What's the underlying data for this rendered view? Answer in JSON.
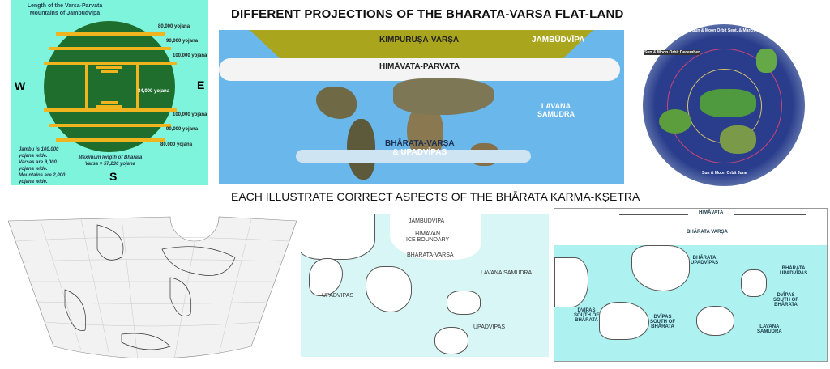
{
  "title": "DIFFERENT PROJECTIONS OF THE BHARATA-VARSA FLAT-LAND",
  "subtitle": "EACH ILLUSTRATE CORRECT ASPECTS OF THE BHĀRATA KARMA-KṢETRA",
  "colors": {
    "p1_bg": "#7ff4dd",
    "p1_circle": "#1f6e2d",
    "p1_bars": "#f0b41e",
    "p2_sea": "#6ab7ec",
    "p2_kimpurusa": "#a9a51d",
    "p5_sea": "#d8f6f6",
    "p6_sea": "#aef1f1"
  },
  "panel1": {
    "heading": [
      "Length of the Varsa-Parvata",
      "Mountains of Jambudvipa"
    ],
    "directions": {
      "west": "W",
      "east": "E",
      "south": "S"
    },
    "bar_labels": [
      "80,000 yojana",
      "90,000 yojana",
      "100,000 yojana",
      "34,000 yojana",
      "100,000 yojana",
      "90,000 yojana",
      "80,000 yojana"
    ],
    "note_left": [
      "Jambu is 100,000",
      "yojana wide.",
      "Varsas are 9,000",
      "yojana wide.",
      "Mountains are 2,000",
      "yojana wide."
    ],
    "note_center": [
      "Maximum length of Bharata",
      "Varsa = 57,236 yojana"
    ]
  },
  "panel2": {
    "labels": {
      "kimpurusa": "KIMPURUṢA-VARṢA",
      "jambudvipa": "JAMBŪDVĪPA",
      "himavata": "HIMĀVATA-PARVATA",
      "lavana": [
        "LAVANA",
        "SAMUDRA"
      ],
      "bharata": [
        "BHĀRATA-VARṢA",
        "& UPADVĪPAS"
      ]
    }
  },
  "panel3": {
    "labels": {
      "sept": "Sun & Moon Orbit Sept. & March",
      "dec": "Sun & Moon Orbit December",
      "june": "Sun & Moon Orbit June"
    }
  },
  "panel5": {
    "labels": {
      "jambudvipa": "JAMBUDVIPA",
      "himavan": [
        "HIMAVAN",
        "ICE BOUNDARY"
      ],
      "bharata": "BHARATA-VARSA",
      "lavana": "LAVANA SAMUDRA",
      "upadvipas_left": "UPADVIPAS",
      "upadvipas_right": "UPADVIPAS"
    }
  },
  "panel6": {
    "labels": {
      "himavata": "HIMĀVATA",
      "bharata_varsa": "BHĀRATA VARṢA",
      "upadvipas_mid": [
        "BHĀRATA",
        "UPADVĪPAS"
      ],
      "upadvipas_right": [
        "BHĀRATA",
        "UPADVĪPAS"
      ],
      "dvipas_left": [
        "DVĪPAS",
        "SOUTH OF",
        "BHĀRATA"
      ],
      "dvipas_mid": [
        "DVĪPAS",
        "SOUTH OF",
        "BHĀRATA"
      ],
      "dvipas_right": [
        "DVĪPAS",
        "SOUTH OF",
        "BHĀRATA"
      ],
      "lavana": [
        "LAVANA",
        "SAMUDRA"
      ]
    }
  }
}
